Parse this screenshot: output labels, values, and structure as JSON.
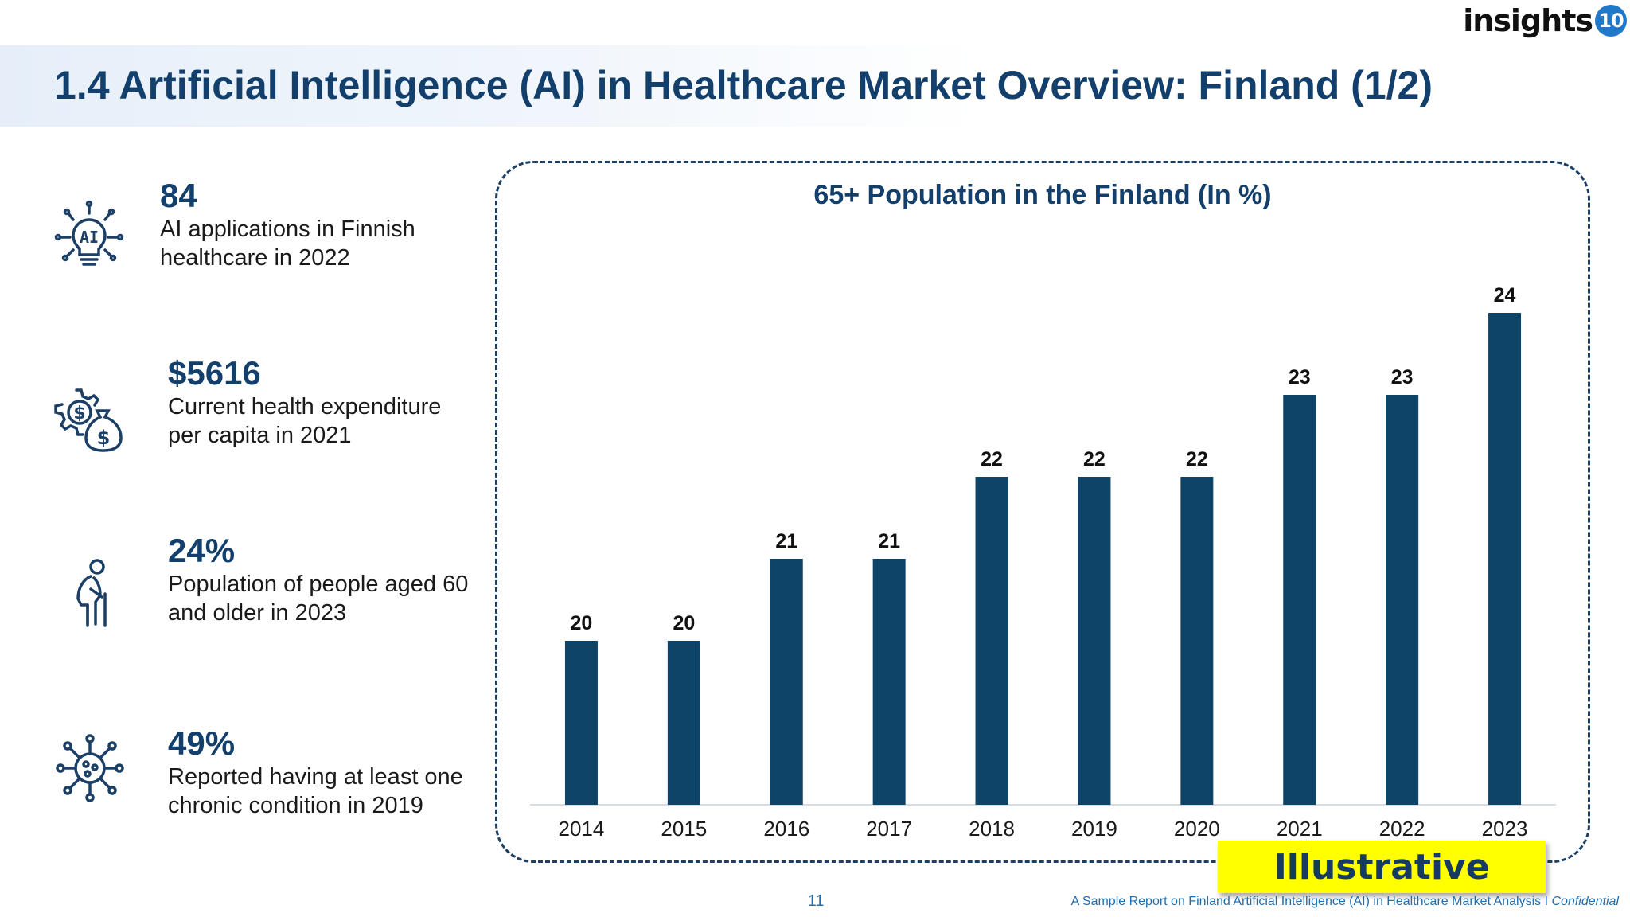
{
  "logo": {
    "text": "insights",
    "badge": "10"
  },
  "title": "1.4 Artificial Intelligence (AI) in Healthcare Market Overview: Finland (1/2)",
  "stats": [
    {
      "icon": "ai-bulb-icon",
      "value": "84",
      "description": "AI applications in Finnish healthcare in 2022"
    },
    {
      "icon": "money-gear-icon",
      "value": "$5616",
      "description": "Current health expenditure per capita in 2021"
    },
    {
      "icon": "elderly-person-icon",
      "value": "24%",
      "description": "Population of people aged 60 and older in 2023"
    },
    {
      "icon": "virus-icon",
      "value": "49%",
      "description": "Reported having at least one chronic condition in 2019"
    }
  ],
  "chart_data": {
    "type": "bar",
    "title": "65+ Population in the Finland (In %)",
    "categories": [
      "2014",
      "2015",
      "2016",
      "2017",
      "2018",
      "2019",
      "2020",
      "2021",
      "2022",
      "2023"
    ],
    "values": [
      20,
      20,
      21,
      21,
      22,
      22,
      22,
      23,
      23,
      24
    ],
    "data_labels": true,
    "grid": false,
    "bar_color": "#0f4469",
    "ylim": [
      18,
      24.5
    ]
  },
  "badge": "Illustrative",
  "footer": {
    "page_number": "11",
    "text": "A Sample Report on Finland Artificial Intelligence (AI) in Healthcare Market Analysis I",
    "confidential": "Confidential"
  },
  "colors": {
    "primary": "#123f6b",
    "accent": "#1f6fb0",
    "highlight": "#ffff00"
  }
}
